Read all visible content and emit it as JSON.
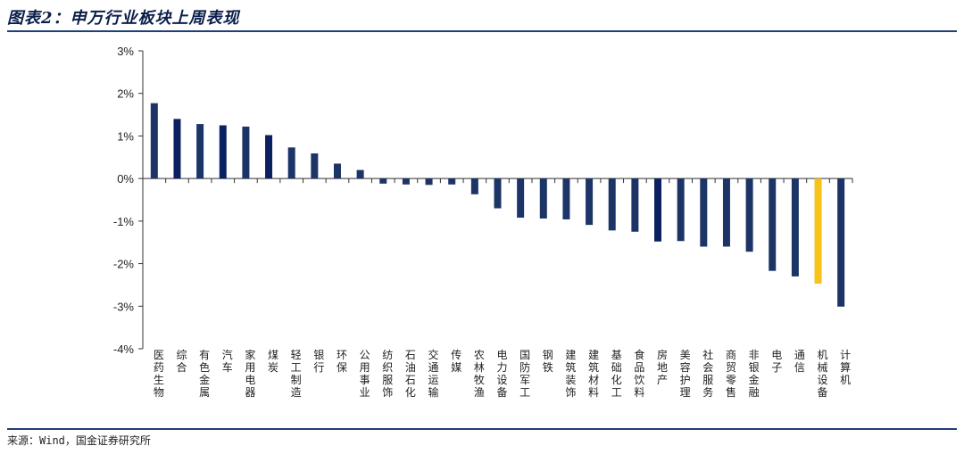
{
  "figure": {
    "title": "图表2：申万行业板块上周表现",
    "source": "来源：Wind，国金证券研究所"
  },
  "colors": {
    "bar_main": "#1c3566",
    "bar_dark": "#0b2060",
    "bar_highlight": "#f7c21a",
    "axis": "#333333",
    "title": "#0b1f4a",
    "rule": "#1f3f7a"
  },
  "chart_data": {
    "type": "bar",
    "title": "",
    "xlabel": "",
    "ylabel": "",
    "ylim": [
      -4,
      3
    ],
    "yticks": [
      3,
      2,
      1,
      0,
      -1,
      -2,
      -3,
      -4
    ],
    "ytick_labels": [
      "3%",
      "2%",
      "1%",
      "0%",
      "-1%",
      "-2%",
      "-3%",
      "-4%"
    ],
    "grid": false,
    "legend": "none",
    "categories": [
      "医药生物",
      "综合",
      "有色金属",
      "汽车",
      "家用电器",
      "煤炭",
      "轻工制造",
      "银行",
      "环保",
      "公用事业",
      "纺织服饰",
      "石油石化",
      "交通运输",
      "传媒",
      "农林牧渔",
      "电力设备",
      "国防军工",
      "钢铁",
      "建筑装饰",
      "建筑材料",
      "基础化工",
      "食品饮料",
      "房地产",
      "美容护理",
      "社会服务",
      "商贸零售",
      "非银金融",
      "电子",
      "通信",
      "机械设备",
      "计算机"
    ],
    "values": [
      1.77,
      1.4,
      1.28,
      1.25,
      1.22,
      1.02,
      0.73,
      0.59,
      0.35,
      0.2,
      -0.12,
      -0.14,
      -0.15,
      -0.14,
      -0.37,
      -0.7,
      -0.92,
      -0.94,
      -0.96,
      -1.09,
      -1.22,
      -1.25,
      -1.48,
      -1.47,
      -1.6,
      -1.6,
      -1.72,
      -2.17,
      -2.3,
      -2.47,
      -3.01
    ],
    "dark_categories": [
      "综合",
      "汽车",
      "煤炭",
      "房地产"
    ],
    "highlight_category": "机械设备"
  }
}
